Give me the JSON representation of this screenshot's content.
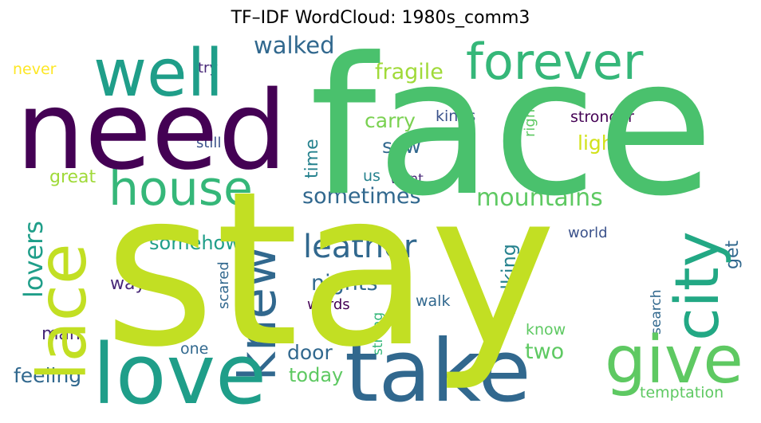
{
  "title": "TF–IDF WordCloud: 1980s_comm3",
  "words": {
    "stay": {
      "text": "stay",
      "color": "#c2df23"
    },
    "face": {
      "text": "face",
      "color": "#4ac16d"
    },
    "need": {
      "text": "need",
      "color": "#440154"
    },
    "well": {
      "text": "well",
      "color": "#1f9e89"
    },
    "forever": {
      "text": "forever",
      "color": "#35b779"
    },
    "lace": {
      "text": "lace",
      "color": "#c2df23"
    },
    "love": {
      "text": "love",
      "color": "#1f9e89"
    },
    "take": {
      "text": "take",
      "color": "#31688e"
    },
    "house": {
      "text": "house",
      "color": "#35b779"
    },
    "city": {
      "text": "city",
      "color": "#22a884"
    },
    "give": {
      "text": "give",
      "color": "#5ec962"
    },
    "knew": {
      "text": "knew",
      "color": "#31688e"
    },
    "leather": {
      "text": "leather",
      "color": "#31688e"
    },
    "lovers": {
      "text": "lovers",
      "color": "#1f9e89"
    },
    "mountains": {
      "text": "mountains",
      "color": "#5ec962"
    },
    "walked": {
      "text": "walked",
      "color": "#31688e"
    },
    "fragile": {
      "text": "fragile",
      "color": "#a0da39"
    },
    "sometimes": {
      "text": "sometimes",
      "color": "#31688e"
    },
    "carry": {
      "text": "carry",
      "color": "#7ad151"
    },
    "saw": {
      "text": "saw",
      "color": "#31688e"
    },
    "light": {
      "text": "light",
      "color": "#d2e21b"
    },
    "time": {
      "text": "time",
      "color": "#26828e"
    },
    "kinds": {
      "text": "kinds",
      "color": "#3b528b"
    },
    "stronger": {
      "text": "stronger",
      "color": "#440154"
    },
    "right": {
      "text": "right",
      "color": "#5ec962"
    },
    "still": {
      "text": "still",
      "color": "#3b528b"
    },
    "great": {
      "text": "great",
      "color": "#a0da39"
    },
    "us": {
      "text": "us",
      "color": "#26828e"
    },
    "want": {
      "text": "want",
      "color": "#482878"
    },
    "somehow": {
      "text": "somehow",
      "color": "#1f9e89"
    },
    "nights": {
      "text": "nights",
      "color": "#31688e"
    },
    "way": {
      "text": "way",
      "color": "#482878"
    },
    "walking": {
      "text": "walking",
      "color": "#26828e"
    },
    "get": {
      "text": "get",
      "color": "#31688e"
    },
    "world": {
      "text": "world",
      "color": "#3b528b"
    },
    "scared": {
      "text": "scared",
      "color": "#31688e"
    },
    "words": {
      "text": "words",
      "color": "#440154"
    },
    "walk": {
      "text": "walk",
      "color": "#31688e"
    },
    "strong": {
      "text": "strong",
      "color": "#35b779"
    },
    "search": {
      "text": "search",
      "color": "#31688e"
    },
    "man": {
      "text": "man",
      "color": "#482878"
    },
    "one": {
      "text": "one",
      "color": "#31688e"
    },
    "door": {
      "text": "door",
      "color": "#31688e"
    },
    "two": {
      "text": "two",
      "color": "#5ec962"
    },
    "know": {
      "text": "know",
      "color": "#5ec962"
    },
    "feeling": {
      "text": "feeling",
      "color": "#31688e"
    },
    "today": {
      "text": "today",
      "color": "#5ec962"
    },
    "temptation": {
      "text": "temptation",
      "color": "#5ec962"
    },
    "never": {
      "text": "never",
      "color": "#fde725"
    },
    "try": {
      "text": "try",
      "color": "#482878"
    }
  }
}
